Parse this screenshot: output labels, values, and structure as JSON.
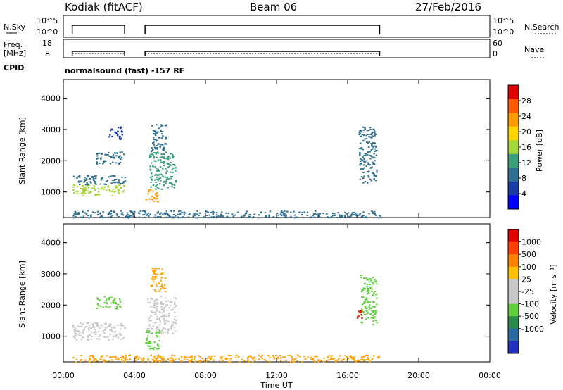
{
  "header": {
    "station": "Kodiak (fitACF)",
    "beam": "Beam 06",
    "date": "27/Feb/2016"
  },
  "strips": {
    "nsky_label": "N.Sky",
    "nsky_ticks": [
      "10^5",
      "10^0"
    ],
    "nsearch_label": "N.Search",
    "nsearch_ticks": [
      "10^5",
      "10^0"
    ],
    "freq_label_1": "Freq.",
    "freq_label_2": "[MHz]",
    "freq_ticks": [
      "18",
      "8"
    ],
    "nave_label": "Nave",
    "nave_ticks": [
      "60",
      "0"
    ],
    "cpid_label": "CPID",
    "cpid_text": "normalsound (fast) -157 RF",
    "coverage_hours": [
      [
        0.5,
        3.45
      ],
      [
        4.6,
        17.8
      ]
    ]
  },
  "chart_data": [
    {
      "type": "heatmap",
      "name": "power",
      "ylabel": "Slant Range [km]",
      "xlabel": "Time UT",
      "xlim": [
        0,
        24
      ],
      "ylim": [
        180,
        4600
      ],
      "yticks": [
        "1000",
        "2000",
        "3000",
        "4000"
      ],
      "colorbar_label": "Power [dB]",
      "colorbar_ticks": [
        "4",
        "8",
        "12",
        "16",
        "20",
        "24",
        "28"
      ],
      "colorbar_range": [
        0,
        32
      ],
      "colors": [
        "#0000ff",
        "#1a3aa6",
        "#2f6f8f",
        "#3aa07a",
        "#a5d63a",
        "#ffd400",
        "#ff9a00",
        "#ff5a00",
        "#e00000"
      ],
      "patches": [
        {
          "t0": 0.5,
          "t1": 3.45,
          "r0": 900,
          "r1": 1250,
          "level": 0.55
        },
        {
          "t0": 0.5,
          "t1": 3.45,
          "r0": 1250,
          "r1": 1550,
          "level": 0.25
        },
        {
          "t0": 1.8,
          "t1": 3.4,
          "r0": 1900,
          "r1": 2300,
          "level": 0.2
        },
        {
          "t0": 2.5,
          "t1": 3.3,
          "r0": 2700,
          "r1": 3100,
          "level": 0.15
        },
        {
          "t0": 4.6,
          "t1": 5.3,
          "r0": 700,
          "r1": 1100,
          "level": 0.75
        },
        {
          "t0": 4.8,
          "t1": 6.3,
          "r0": 1100,
          "r1": 2300,
          "level": 0.35
        },
        {
          "t0": 4.9,
          "t1": 5.8,
          "r0": 2300,
          "r1": 3200,
          "level": 0.2
        },
        {
          "t0": 16.6,
          "t1": 17.6,
          "r0": 1300,
          "r1": 3100,
          "level": 0.3
        },
        {
          "t0": 0.5,
          "t1": 17.8,
          "r0": 190,
          "r1": 420,
          "level": 0.3
        }
      ]
    },
    {
      "type": "heatmap",
      "name": "velocity",
      "ylabel": "Slant Range [km]",
      "xlabel": "Time UT",
      "xlim": [
        0,
        24
      ],
      "ylim": [
        180,
        4600
      ],
      "yticks": [
        "1000",
        "2000",
        "3000",
        "4000"
      ],
      "colorbar_label": "Velocity [m s⁻¹]",
      "colorbar_ticks": [
        "1000",
        "500",
        "100",
        "25",
        "-25",
        "-100",
        "-500",
        "-1000"
      ],
      "colors": [
        "#2030c0",
        "#2a6aa0",
        "#2a8a4a",
        "#5fd03a",
        "#c8c8c8",
        "#c8c8c8",
        "#ffc000",
        "#ff8000",
        "#ff4000",
        "#e00000"
      ],
      "patches": [
        {
          "t0": 0.5,
          "t1": 3.45,
          "r0": 900,
          "r1": 1450,
          "level": "grey"
        },
        {
          "t0": 1.8,
          "t1": 3.2,
          "r0": 1900,
          "r1": 2300,
          "level": "green"
        },
        {
          "t0": 4.7,
          "t1": 6.3,
          "r0": 1100,
          "r1": 2300,
          "level": "grey"
        },
        {
          "t0": 4.6,
          "t1": 5.4,
          "r0": 600,
          "r1": 1200,
          "level": "green"
        },
        {
          "t0": 4.9,
          "t1": 5.7,
          "r0": 2400,
          "r1": 3200,
          "level": "orange"
        },
        {
          "t0": 16.7,
          "t1": 17.6,
          "r0": 1400,
          "r1": 3000,
          "level": "green"
        },
        {
          "t0": 16.5,
          "t1": 16.9,
          "r0": 1600,
          "r1": 1900,
          "level": "red"
        },
        {
          "t0": 0.5,
          "t1": 17.8,
          "r0": 190,
          "r1": 420,
          "level": "orange"
        }
      ]
    }
  ],
  "xaxis": {
    "ticks": [
      "00:00",
      "04:00",
      "08:00",
      "12:00",
      "16:00",
      "20:00",
      "00:00"
    ],
    "label": "Time UT"
  }
}
